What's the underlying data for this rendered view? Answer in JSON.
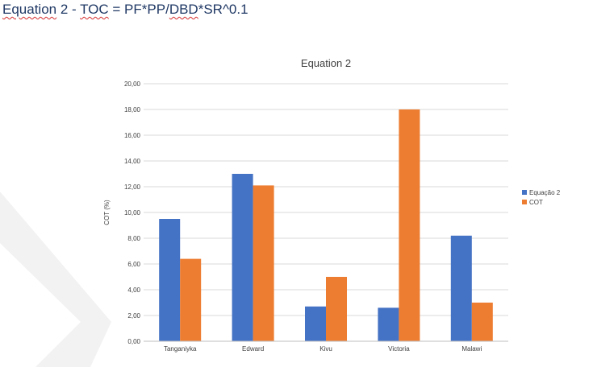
{
  "page": {
    "title_parts": {
      "part1": "Equation",
      "part2": " 2 - ",
      "part3": "TOC",
      "part4": " = PF*PP/",
      "part5": "DBD",
      "part6": "*SR^0.1"
    }
  },
  "colors": {
    "series1": "#4472c4",
    "series2": "#ed7d31",
    "gridline": "#d9d9d9",
    "axis": "#bfbfbf",
    "text": "#404040",
    "decor": "#f2f2f2"
  },
  "chart_data": {
    "type": "bar",
    "title": "Equation 2",
    "xlabel": "",
    "ylabel": "COT (%)",
    "ylim": [
      0,
      20
    ],
    "yticks": [
      "0,00",
      "2,00",
      "4,00",
      "6,00",
      "8,00",
      "10,00",
      "12,00",
      "14,00",
      "16,00",
      "18,00",
      "20,00"
    ],
    "categories": [
      "Tanganiyka",
      "Edward",
      "Kivu",
      "Victoria",
      "Malawi"
    ],
    "series": [
      {
        "name": "Equação 2",
        "values": [
          9.5,
          13.0,
          2.7,
          2.6,
          8.2
        ]
      },
      {
        "name": "COT",
        "values": [
          6.4,
          12.1,
          5.0,
          18.0,
          3.0
        ]
      }
    ],
    "grid": true,
    "legend_position": "right"
  }
}
